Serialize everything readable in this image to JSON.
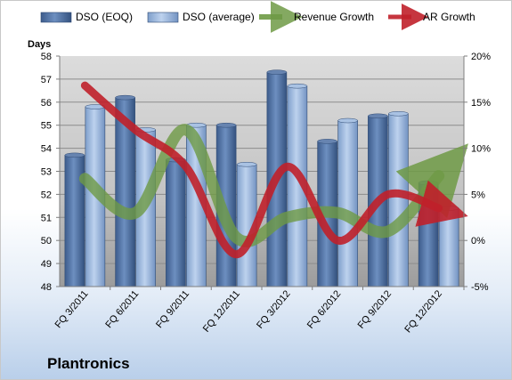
{
  "company": "Plantronics",
  "chart_data": {
    "type": "bar",
    "title": "",
    "ylabel_left": "Days",
    "ylabel_right": "",
    "categories": [
      "FQ 3/2011",
      "FQ 6/2011",
      "FQ 9/2011",
      "FQ 12/2011",
      "FQ 3/2012",
      "FQ 6/2012",
      "FQ 9/2012",
      "FQ 12/2012"
    ],
    "ylim_left": [
      48,
      58
    ],
    "yticks_left": [
      "48",
      "49",
      "50",
      "51",
      "52",
      "53",
      "54",
      "55",
      "56",
      "57",
      "58"
    ],
    "ylim_right": [
      -5,
      20
    ],
    "yticks_right": [
      "-5%",
      "0%",
      "5%",
      "10%",
      "15%",
      "20%"
    ],
    "grid": true,
    "legend_position": "top",
    "series": [
      {
        "name": "DSO (EOQ)",
        "kind": "bar",
        "axis": "left",
        "color": "#4a6b9a",
        "values": [
          53.7,
          56.2,
          53.5,
          55.0,
          57.3,
          54.3,
          55.4,
          52.5
        ]
      },
      {
        "name": "DSO (average)",
        "kind": "bar",
        "axis": "left",
        "color": "#9ab5d9",
        "values": [
          55.8,
          54.8,
          55.0,
          53.3,
          56.7,
          55.2,
          55.5,
          51.4
        ]
      },
      {
        "name": "Revenue Growth",
        "kind": "line",
        "axis": "right",
        "color": "#6e9a45",
        "values": [
          6.7,
          3.0,
          12.0,
          0.3,
          2.5,
          3.0,
          1.0,
          7.0
        ]
      },
      {
        "name": "AR Growth",
        "kind": "line",
        "axis": "right",
        "color": "#c0202a",
        "values": [
          16.8,
          12.0,
          8.0,
          -1.5,
          8.0,
          0.0,
          5.0,
          3.5
        ]
      }
    ]
  }
}
